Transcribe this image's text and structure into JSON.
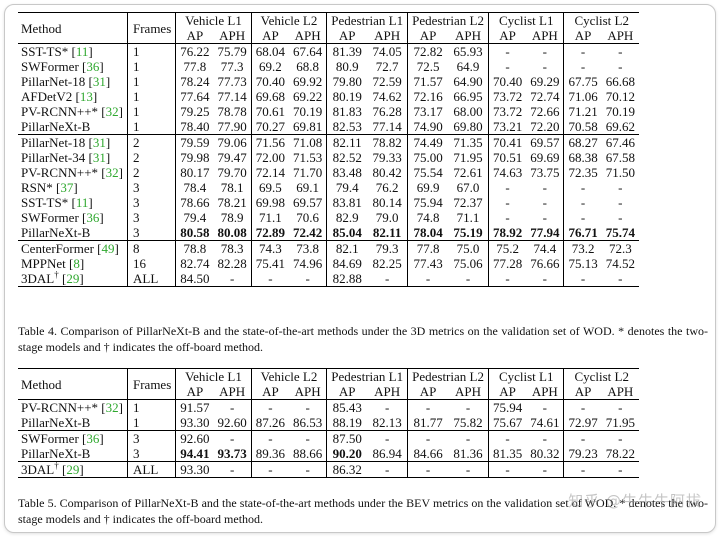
{
  "table4": {
    "head": {
      "method": "Method",
      "frames": "Frames",
      "groups": [
        "Vehicle L1",
        "Vehicle L2",
        "Pedestrian L1",
        "Pedestrian L2",
        "Cyclist L1",
        "Cyclist L2"
      ],
      "ap": "AP",
      "aph": "APH"
    },
    "g1": [
      {
        "name": "SST-TS*",
        "cite": "11",
        "frames": "1",
        "v": [
          "76.22",
          "75.79",
          "68.04",
          "67.64",
          "81.39",
          "74.05",
          "72.82",
          "65.93",
          "-",
          "-",
          "-",
          "-"
        ]
      },
      {
        "name": "SWFormer",
        "cite": "36",
        "frames": "1",
        "v": [
          "77.8",
          "77.3",
          "69.2",
          "68.8",
          "80.9",
          "72.7",
          "72.5",
          "64.9",
          "-",
          "-",
          "-",
          "-"
        ]
      },
      {
        "name": "PillarNet-18",
        "cite": "31",
        "frames": "1",
        "v": [
          "78.24",
          "77.73",
          "70.40",
          "69.92",
          "79.80",
          "72.59",
          "71.57",
          "64.90",
          "70.40",
          "69.29",
          "67.75",
          "66.68"
        ]
      },
      {
        "name": "AFDetV2",
        "cite": "13",
        "frames": "1",
        "v": [
          "77.64",
          "77.14",
          "69.68",
          "69.22",
          "80.19",
          "74.62",
          "72.16",
          "66.95",
          "73.72",
          "72.74",
          "71.06",
          "70.12"
        ]
      },
      {
        "name": "PV-RCNN++*",
        "cite": "32",
        "frames": "1",
        "v": [
          "79.25",
          "78.78",
          "70.61",
          "70.19",
          "81.83",
          "76.28",
          "73.17",
          "68.00",
          "73.72",
          "72.66",
          "71.21",
          "70.19"
        ]
      },
      {
        "name": "PillarNeXt-B",
        "cite": "",
        "frames": "1",
        "v": [
          "78.40",
          "77.90",
          "70.27",
          "69.81",
          "82.53",
          "77.14",
          "74.90",
          "69.80",
          "73.21",
          "72.20",
          "70.58",
          "69.62"
        ]
      }
    ],
    "g2": [
      {
        "name": "PillarNet-18",
        "cite": "31",
        "frames": "2",
        "v": [
          "79.59",
          "79.06",
          "71.56",
          "71.08",
          "82.11",
          "78.82",
          "74.49",
          "71.35",
          "70.41",
          "69.57",
          "68.27",
          "67.46"
        ]
      },
      {
        "name": "PillarNet-34",
        "cite": "31",
        "frames": "2",
        "v": [
          "79.98",
          "79.47",
          "72.00",
          "71.53",
          "82.52",
          "79.33",
          "75.00",
          "71.95",
          "70.51",
          "69.69",
          "68.38",
          "67.58"
        ]
      },
      {
        "name": "PV-RCNN++*",
        "cite": "32",
        "frames": "2",
        "v": [
          "80.17",
          "79.70",
          "72.14",
          "71.70",
          "83.48",
          "80.42",
          "75.54",
          "72.61",
          "74.63",
          "73.75",
          "72.35",
          "71.50"
        ]
      },
      {
        "name": "RSN*",
        "cite": "37",
        "frames": "3",
        "v": [
          "78.4",
          "78.1",
          "69.5",
          "69.1",
          "79.4",
          "76.2",
          "69.9",
          "67.0",
          "-",
          "-",
          "-",
          "-"
        ]
      },
      {
        "name": "SST-TS*",
        "cite": "11",
        "frames": "3",
        "v": [
          "78.66",
          "78.21",
          "69.98",
          "69.57",
          "83.81",
          "80.14",
          "75.94",
          "72.37",
          "-",
          "-",
          "-",
          "-"
        ]
      },
      {
        "name": "SWFormer",
        "cite": "36",
        "frames": "3",
        "v": [
          "79.4",
          "78.9",
          "71.1",
          "70.6",
          "82.9",
          "79.0",
          "74.8",
          "71.1",
          "-",
          "-",
          "-",
          "-"
        ]
      },
      {
        "name": "PillarNeXt-B",
        "cite": "",
        "frames": "3",
        "v": [
          "80.58",
          "80.08",
          "72.89",
          "72.42",
          "85.04",
          "82.11",
          "78.04",
          "75.19",
          "78.92",
          "77.94",
          "76.71",
          "75.74"
        ]
      }
    ],
    "g3": [
      {
        "name": "CenterFormer",
        "cite": "49",
        "frames": "8",
        "v": [
          "78.8",
          "78.3",
          "74.3",
          "73.8",
          "82.1",
          "79.3",
          "77.8",
          "75.0",
          "75.2",
          "74.4",
          "73.2",
          "72.3"
        ]
      },
      {
        "name": "MPPNet",
        "cite": "8",
        "frames": "16",
        "v": [
          "82.74",
          "82.28",
          "75.41",
          "74.96",
          "84.69",
          "82.25",
          "77.43",
          "75.06",
          "77.28",
          "76.66",
          "75.13",
          "74.52"
        ]
      },
      {
        "name": "3DAL",
        "cite": "29",
        "frames": "ALL",
        "v": [
          "84.50",
          "-",
          "-",
          "-",
          "82.88",
          "-",
          "-",
          "-",
          "-",
          "-",
          "-",
          "-"
        ]
      }
    ],
    "caption": "Table 4. Comparison of PillarNeXt-B and the state-of-the-art methods under the 3D metrics on the validation set of WOD. * denotes the two-stage models and † indicates the off-board method."
  },
  "table5": {
    "g1": [
      {
        "name": "PV-RCNN++*",
        "cite": "32",
        "frames": "1",
        "v": [
          "91.57",
          "-",
          "-",
          "-",
          "85.43",
          "-",
          "-",
          "-",
          "75.94",
          "-",
          "-",
          "-"
        ]
      },
      {
        "name": "PillarNeXt-B",
        "cite": "",
        "frames": "1",
        "v": [
          "93.30",
          "92.60",
          "87.26",
          "86.53",
          "88.19",
          "82.13",
          "81.77",
          "75.82",
          "75.67",
          "74.61",
          "72.97",
          "71.95"
        ]
      }
    ],
    "g2": [
      {
        "name": "SWFormer",
        "cite": "36",
        "frames": "3",
        "v": [
          "92.60",
          "-",
          "-",
          "-",
          "87.50",
          "-",
          "-",
          "-",
          "-",
          "-",
          "-",
          "-"
        ]
      },
      {
        "name": "PillarNeXt-B",
        "cite": "",
        "frames": "3",
        "v": [
          "94.41",
          "93.73",
          "89.36",
          "88.66",
          "90.20",
          "86.94",
          "84.66",
          "81.36",
          "81.35",
          "80.32",
          "79.23",
          "78.22"
        ]
      }
    ],
    "g3": [
      {
        "name": "3DAL",
        "cite": "29",
        "frames": "ALL",
        "v": [
          "93.30",
          "-",
          "-",
          "-",
          "86.32",
          "-",
          "-",
          "-",
          "-",
          "-",
          "-",
          "-"
        ]
      }
    ],
    "caption": "Table 5. Comparison of PillarNeXt-B and the state-of-the-art methods under the BEV metrics on the validation set of WOD. * denotes the two-stage models and † indicates the off-board method."
  },
  "watermark": "知乎 @牛牛牛阿拔"
}
